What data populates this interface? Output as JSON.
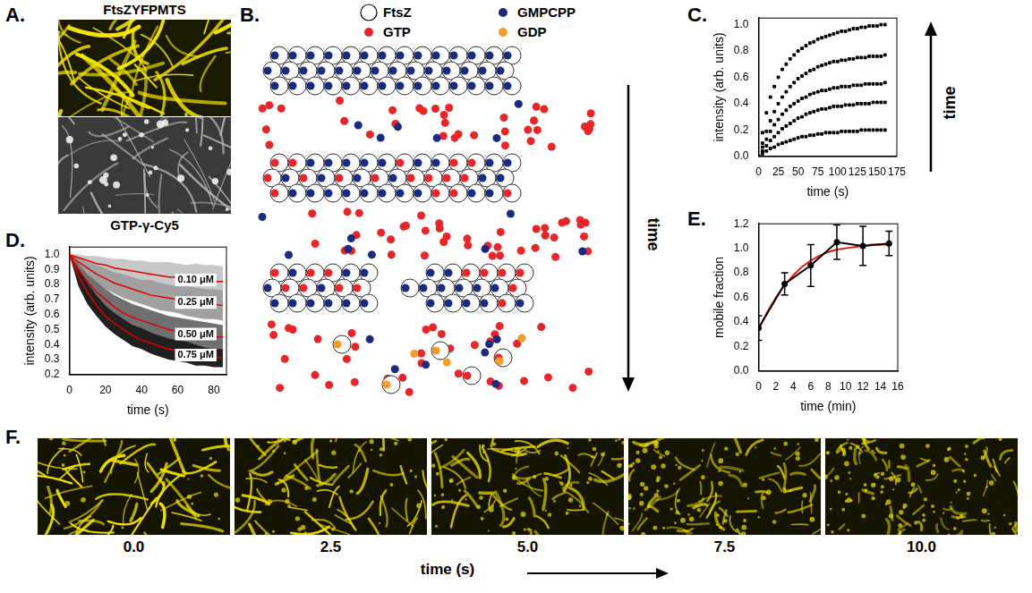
{
  "panels": {
    "A": {
      "letter": "A.",
      "top_label": "FtsZYFPMTS",
      "bottom_label": "GTP-γ-Cy5"
    },
    "B": {
      "letter": "B.",
      "legend": [
        {
          "label": "FtsZ",
          "color": "#ffffff"
        },
        {
          "label": "GMPCPP",
          "color": "#1a2a80"
        },
        {
          "label": "GTP",
          "color": "#e8262a"
        },
        {
          "label": "GDP",
          "color": "#f39c2c"
        }
      ],
      "axis_label": "time"
    },
    "F": {
      "letter": "F.",
      "times": [
        "0.0",
        "2.5",
        "5.0",
        "7.5",
        "10.0"
      ],
      "axis_label": "time (s)"
    }
  },
  "chart_data": [
    {
      "panel": "C.",
      "type": "scatter",
      "x": [
        0,
        5,
        10,
        15,
        20,
        25,
        30,
        35,
        40,
        45,
        50,
        55,
        60,
        65,
        70,
        75,
        80,
        85,
        90,
        95,
        100,
        105,
        110,
        115,
        120,
        125,
        130,
        135,
        140,
        145,
        150,
        155,
        160
      ],
      "series": [
        {
          "color": "#000000",
          "marker": "square",
          "values": [
            0,
            0.18,
            0.33,
            0.45,
            0.53,
            0.6,
            0.66,
            0.7,
            0.74,
            0.77,
            0.8,
            0.82,
            0.84,
            0.86,
            0.87,
            0.89,
            0.9,
            0.91,
            0.92,
            0.93,
            0.94,
            0.95,
            0.95,
            0.96,
            0.97,
            0.97,
            0.98,
            0.98,
            0.99,
            0.99,
            0.99,
            1.0,
            1.0
          ]
        },
        {
          "color": "#000000",
          "marker": "square",
          "values": [
            0,
            0.1,
            0.19,
            0.27,
            0.34,
            0.4,
            0.45,
            0.49,
            0.53,
            0.56,
            0.59,
            0.61,
            0.63,
            0.65,
            0.66,
            0.68,
            0.69,
            0.7,
            0.71,
            0.72,
            0.72,
            0.73,
            0.73,
            0.74,
            0.74,
            0.75,
            0.75,
            0.75,
            0.76,
            0.76,
            0.76,
            0.76,
            0.77
          ]
        },
        {
          "color": "#000000",
          "marker": "square",
          "values": [
            0,
            0.07,
            0.13,
            0.19,
            0.24,
            0.28,
            0.32,
            0.35,
            0.38,
            0.4,
            0.42,
            0.44,
            0.45,
            0.47,
            0.48,
            0.49,
            0.5,
            0.5,
            0.51,
            0.52,
            0.52,
            0.53,
            0.53,
            0.53,
            0.54,
            0.54,
            0.54,
            0.55,
            0.55,
            0.55,
            0.55,
            0.55,
            0.56
          ]
        },
        {
          "color": "#000000",
          "marker": "square",
          "values": [
            0,
            0.04,
            0.08,
            0.12,
            0.15,
            0.18,
            0.21,
            0.23,
            0.25,
            0.27,
            0.29,
            0.3,
            0.32,
            0.33,
            0.34,
            0.35,
            0.36,
            0.36,
            0.37,
            0.38,
            0.38,
            0.38,
            0.39,
            0.39,
            0.39,
            0.4,
            0.4,
            0.4,
            0.4,
            0.41,
            0.41,
            0.41,
            0.41
          ]
        },
        {
          "color": "#000000",
          "marker": "square",
          "values": [
            0,
            0.02,
            0.04,
            0.06,
            0.07,
            0.09,
            0.1,
            0.11,
            0.12,
            0.13,
            0.14,
            0.15,
            0.15,
            0.16,
            0.16,
            0.17,
            0.17,
            0.18,
            0.18,
            0.18,
            0.18,
            0.19,
            0.19,
            0.19,
            0.19,
            0.19,
            0.2,
            0.2,
            0.2,
            0.2,
            0.2,
            0.2,
            0.2
          ]
        }
      ],
      "x_label": "time (s)",
      "y_label": "intensity (arb. units)",
      "xlim": [
        0,
        175
      ],
      "xticks": [
        0,
        25,
        50,
        75,
        100,
        125,
        150,
        175
      ],
      "ylim": [
        0,
        1.05
      ],
      "yticks": [
        {
          "value": 0,
          "label": "0.0"
        },
        0.2,
        0.4,
        0.6,
        0.8,
        {
          "value": 1,
          "label": "1.0"
        }
      ],
      "grid": false,
      "annotation": "time"
    },
    {
      "panel": "D.",
      "type": "line",
      "x": [
        0,
        5,
        10,
        15,
        20,
        25,
        30,
        35,
        40,
        45,
        50,
        55,
        60,
        65,
        70,
        75,
        80,
        85
      ],
      "series": [
        {
          "name": "0.10 μM",
          "color": "#c8c8c8",
          "values": [
            1.0,
            0.97,
            0.95,
            0.94,
            0.92,
            0.91,
            0.9,
            0.89,
            0.88,
            0.87,
            0.87,
            0.86,
            0.85,
            0.84,
            0.84,
            0.83,
            0.83,
            0.82
          ],
          "error": [
            0.0,
            0.03,
            0.04,
            0.05,
            0.06,
            0.06,
            0.07,
            0.07,
            0.08,
            0.08,
            0.08,
            0.09,
            0.09,
            0.09,
            0.1,
            0.1,
            0.1,
            0.1
          ],
          "fit": [
            1.0,
            0.98,
            0.96,
            0.94,
            0.93,
            0.91,
            0.9,
            0.89,
            0.88,
            0.87,
            0.86,
            0.85,
            0.85,
            0.84,
            0.83,
            0.83,
            0.82,
            0.82
          ]
        },
        {
          "name": "0.25 μM",
          "color": "#a0a0a0",
          "values": [
            1.0,
            0.94,
            0.9,
            0.87,
            0.84,
            0.81,
            0.79,
            0.77,
            0.75,
            0.74,
            0.72,
            0.71,
            0.7,
            0.69,
            0.68,
            0.67,
            0.67,
            0.66
          ],
          "error": [
            0.0,
            0.04,
            0.05,
            0.06,
            0.07,
            0.07,
            0.08,
            0.08,
            0.08,
            0.09,
            0.09,
            0.09,
            0.09,
            0.1,
            0.1,
            0.1,
            0.1,
            0.1
          ],
          "fit": [
            1.0,
            0.95,
            0.91,
            0.87,
            0.84,
            0.81,
            0.79,
            0.77,
            0.75,
            0.73,
            0.72,
            0.71,
            0.7,
            0.69,
            0.68,
            0.67,
            0.67,
            0.66
          ]
        },
        {
          "name": "0.50 μM",
          "color": "#707070",
          "values": [
            1.0,
            0.89,
            0.81,
            0.75,
            0.7,
            0.65,
            0.62,
            0.59,
            0.56,
            0.54,
            0.52,
            0.5,
            0.49,
            0.48,
            0.47,
            0.46,
            0.45,
            0.44
          ],
          "error": [
            0.0,
            0.05,
            0.06,
            0.07,
            0.07,
            0.08,
            0.08,
            0.08,
            0.09,
            0.09,
            0.09,
            0.09,
            0.09,
            0.09,
            0.09,
            0.09,
            0.09,
            0.09
          ],
          "fit": [
            1.0,
            0.9,
            0.82,
            0.75,
            0.7,
            0.65,
            0.61,
            0.58,
            0.56,
            0.54,
            0.52,
            0.5,
            0.49,
            0.48,
            0.47,
            0.46,
            0.45,
            0.45
          ]
        },
        {
          "name": "0.75 μM",
          "color": "#202020",
          "values": [
            1.0,
            0.85,
            0.74,
            0.66,
            0.59,
            0.54,
            0.5,
            0.46,
            0.44,
            0.41,
            0.39,
            0.37,
            0.36,
            0.35,
            0.33,
            0.32,
            0.31,
            0.31
          ],
          "error": [
            0.0,
            0.06,
            0.07,
            0.07,
            0.07,
            0.07,
            0.07,
            0.07,
            0.07,
            0.07,
            0.07,
            0.07,
            0.07,
            0.07,
            0.07,
            0.06,
            0.06,
            0.06
          ],
          "fit": [
            1.0,
            0.86,
            0.75,
            0.66,
            0.59,
            0.54,
            0.5,
            0.46,
            0.43,
            0.41,
            0.39,
            0.37,
            0.36,
            0.34,
            0.33,
            0.32,
            0.32,
            0.31
          ]
        }
      ],
      "x_label": "time (s)",
      "y_label": "intensity (arb. units)",
      "xlim": [
        0,
        87
      ],
      "xticks": [
        0,
        20,
        40,
        60,
        80
      ],
      "ylim": [
        0.2,
        1.05
      ],
      "yticks": [
        0.2,
        0.3,
        0.4,
        0.5,
        0.6,
        0.7,
        0.8,
        0.9,
        {
          "value": 1,
          "label": "1.0"
        }
      ],
      "grid": false
    },
    {
      "panel": "E.",
      "type": "line",
      "series": [
        {
          "x": [
            0,
            3,
            6,
            9,
            12,
            15
          ],
          "values": [
            0.35,
            0.71,
            0.86,
            1.05,
            1.02,
            1.04
          ],
          "error": [
            0.1,
            0.09,
            0.17,
            0.14,
            0.16,
            0.1
          ],
          "color": "#000000",
          "marker": "circle"
        },
        {
          "x": [
            0,
            1,
            2,
            3,
            4,
            5,
            6,
            7,
            8,
            9,
            10,
            11,
            12,
            13,
            14,
            15
          ],
          "values": [
            0.34,
            0.48,
            0.6,
            0.7,
            0.78,
            0.85,
            0.9,
            0.94,
            0.97,
            0.99,
            1.0,
            1.01,
            1.02,
            1.03,
            1.03,
            1.03
          ],
          "color": "#e41a1c",
          "marker": "none"
        }
      ],
      "x_label": "time (min)",
      "y_label": "mobile fraction",
      "xlim": [
        0,
        16
      ],
      "xticks": [
        0,
        2,
        4,
        6,
        8,
        10,
        12,
        14,
        16
      ],
      "ylim": [
        0,
        1.2
      ],
      "yticks": [
        {
          "value": 0,
          "label": "0.0"
        },
        0.2,
        0.4,
        0.6,
        0.8,
        {
          "value": 1,
          "label": "1.0"
        },
        1.2
      ],
      "grid": false
    }
  ]
}
